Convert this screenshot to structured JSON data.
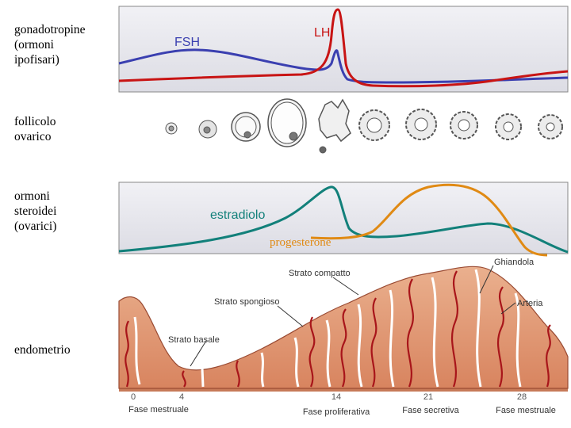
{
  "row_labels": {
    "gonadotropins": "gonadotropine\n(ormoni\nipofisari)",
    "follicle": "follicolo\novarico",
    "steroids": "ormoni\nsteroidei\n(ovarici)",
    "endometrium": "endometrio"
  },
  "hormones": {
    "fsh": "FSH",
    "lh": "LH",
    "estradiol": "estradiolo",
    "progesterone": "progesterone"
  },
  "endometrium_labels": {
    "compact": "Strato compatto",
    "spongy": "Strato spongioso",
    "basal": "Strato basale",
    "gland": "Ghiandola",
    "artery": "Arteria"
  },
  "day_ticks": [
    "0",
    "4",
    "14",
    "21",
    "28"
  ],
  "phases": {
    "menstrual_1": "Fase mestruale",
    "proliferative": "Fase proliferativa",
    "secretory": "Fase secretiva",
    "menstrual_2": "Fase mestruale"
  },
  "colors": {
    "fsh": "#3a3fb0",
    "lh": "#c81414",
    "estradiol": "#12807a",
    "progesterone": "#e08a14",
    "panel": "#e9e9ee",
    "tissue": "#e8a07c",
    "vessel": "#a8151a"
  }
}
